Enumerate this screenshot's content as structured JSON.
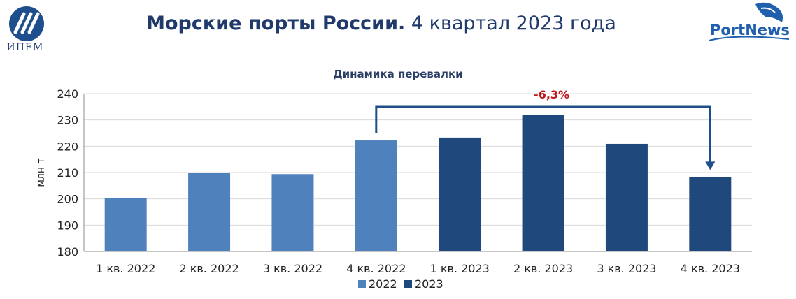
{
  "header": {
    "title_bold": "Морские порты России.",
    "title_rest": "4 квартал 2023 года",
    "logo_left_text": "ИПЕМ",
    "logo_right_text": "PortNews"
  },
  "chart_data": {
    "type": "bar",
    "title": "Динамика перевалки",
    "ylabel": "млн т",
    "xlabel": "",
    "ylim": [
      180,
      240
    ],
    "yticks": [
      180,
      190,
      200,
      210,
      220,
      230,
      240
    ],
    "grid": true,
    "legend_position": "bottom",
    "categories": [
      "1 кв. 2022",
      "2 кв. 2022",
      "3 кв. 2022",
      "4 кв. 2022",
      "1 кв. 2023",
      "2 кв. 2023",
      "3 кв. 2023",
      "4 кв. 2023"
    ],
    "values": [
      200.2,
      210.0,
      209.4,
      222.2,
      223.3,
      231.9,
      220.9,
      208.3
    ],
    "bar_series": [
      "2022",
      "2022",
      "2022",
      "2022",
      "2023",
      "2023",
      "2023",
      "2023"
    ],
    "series": [
      {
        "name": "2022",
        "color": "#4f81bd"
      },
      {
        "name": "2023",
        "color": "#1f497d"
      }
    ],
    "annotation": {
      "text": "-6,3%",
      "color": "#c0171b",
      "from_category": "4 кв. 2022",
      "to_category": "4 кв. 2023"
    }
  }
}
